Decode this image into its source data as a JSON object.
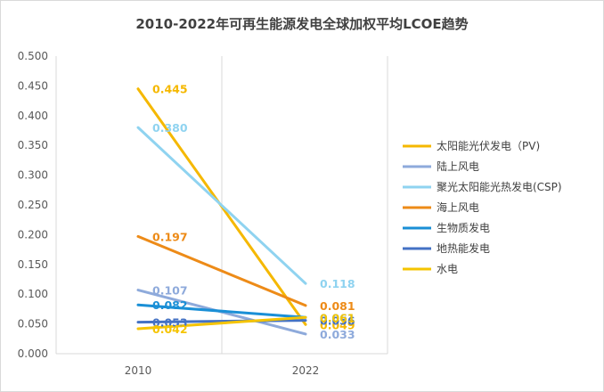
{
  "chart_data": {
    "type": "line",
    "title": "2010-2022年可再生能源发电全球加权平均LCOE趋势",
    "xlabel": "",
    "ylabel": "",
    "x": [
      "2010",
      "2022"
    ],
    "ylim": [
      0,
      0.5
    ],
    "yticks": [
      "0.000",
      "0.050",
      "0.100",
      "0.150",
      "0.200",
      "0.250",
      "0.300",
      "0.350",
      "0.400",
      "0.450",
      "0.500"
    ],
    "grid": "vertical",
    "legend_position": "right",
    "series": [
      {
        "name": "太阳能光伏发电（PV)",
        "values": [
          0.445,
          0.049
        ],
        "labels": [
          "0.445",
          "0.049"
        ],
        "color": "#f5b800"
      },
      {
        "name": "陆上风电",
        "values": [
          0.107,
          0.033
        ],
        "labels": [
          "0.107",
          "0.033"
        ],
        "color": "#8eaadb"
      },
      {
        "name": "聚光太阳能光热发电(CSP)",
        "values": [
          0.38,
          0.118
        ],
        "labels": [
          "0.380",
          "0.118"
        ],
        "color": "#8fd3f0"
      },
      {
        "name": "海上风电",
        "values": [
          0.197,
          0.081
        ],
        "labels": [
          "0.197",
          "0.081"
        ],
        "color": "#ed8b18"
      },
      {
        "name": "生物质发电",
        "values": [
          0.082,
          0.061
        ],
        "labels": [
          "0.082",
          "0.061"
        ],
        "color": "#1a8fd6"
      },
      {
        "name": "地热能发电",
        "values": [
          0.053,
          0.056
        ],
        "labels": [
          "0.053",
          "0.056"
        ],
        "color": "#4472c4"
      },
      {
        "name": "水电",
        "values": [
          0.042,
          0.061
        ],
        "labels": [
          "0.042",
          "0.061"
        ],
        "color": "#f5c400"
      }
    ]
  }
}
